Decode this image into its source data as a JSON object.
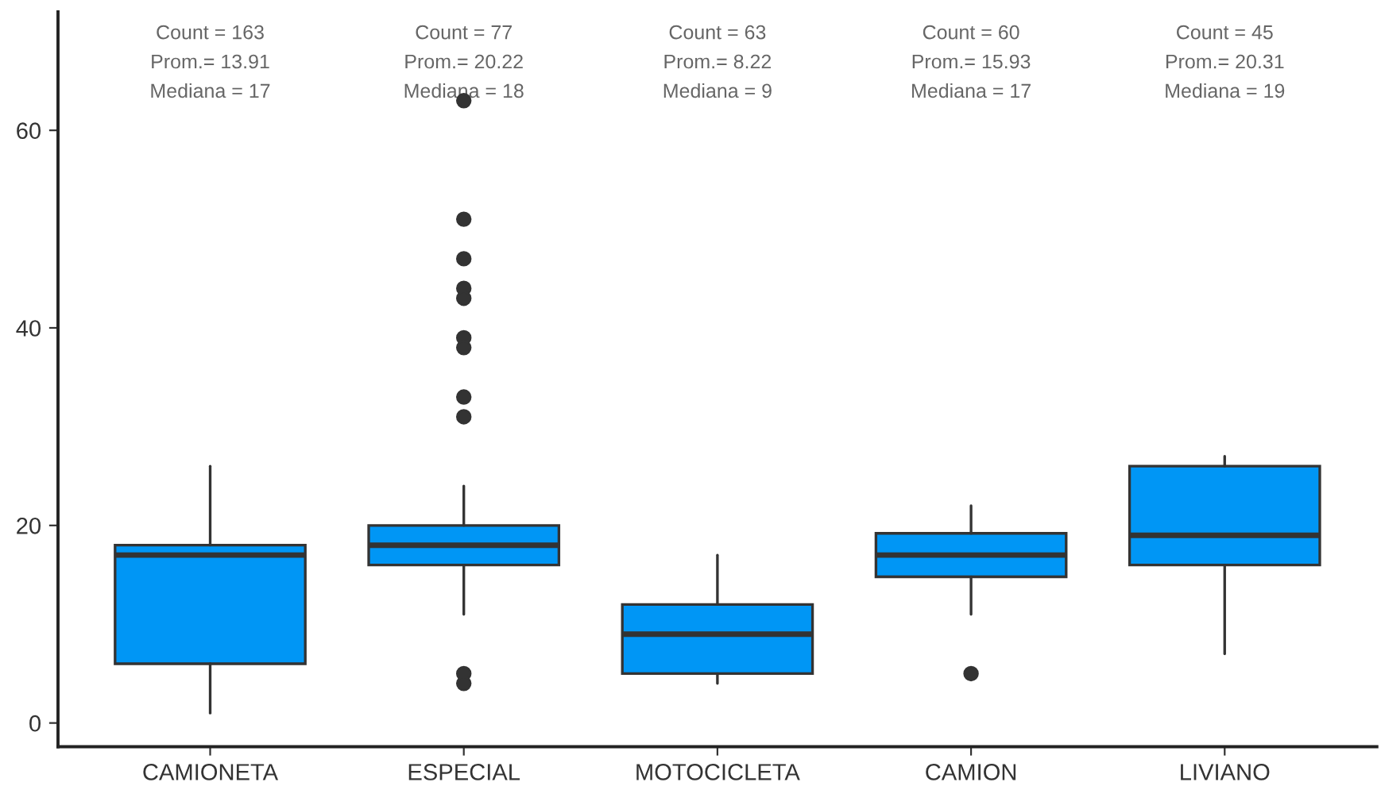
{
  "chart_data": {
    "type": "box",
    "categories": [
      "CAMIONETA",
      "ESPECIAL",
      "MOTOCICLETA",
      "CAMION",
      "LIVIANO"
    ],
    "color": "#0096f5",
    "boxes": [
      {
        "low": 1,
        "q1": 6,
        "median": 17,
        "q3": 18,
        "high": 26
      },
      {
        "low": 11,
        "q1": 16,
        "median": 18,
        "q3": 20,
        "high": 24,
        "outliers": [
          63,
          51,
          47,
          44,
          43,
          39,
          38,
          33,
          31,
          5,
          4
        ]
      },
      {
        "low": 4,
        "q1": 5,
        "median": 9,
        "q3": 12,
        "high": 17
      },
      {
        "low": 11,
        "q1": 14.8,
        "median": 17,
        "q3": 19.2,
        "high": 22,
        "outliers": [
          5
        ]
      },
      {
        "low": 7,
        "q1": 16,
        "median": 19,
        "q3": 26,
        "high": 27
      }
    ],
    "ylim": [
      -2.4,
      72
    ],
    "yticks": [
      0,
      20,
      40,
      60
    ],
    "grid": false,
    "annotations": [
      "Count = 163\nProm.= 13.91\nMediana = 17",
      "Count = 77\nProm.= 20.22\nMediana = 18",
      "Count = 63\nProm.= 8.22\nMediana = 9",
      "Count = 60\nProm.= 15.93\nMediana = 17",
      "Count = 45\nProm.= 20.31\nMediana = 19"
    ]
  }
}
